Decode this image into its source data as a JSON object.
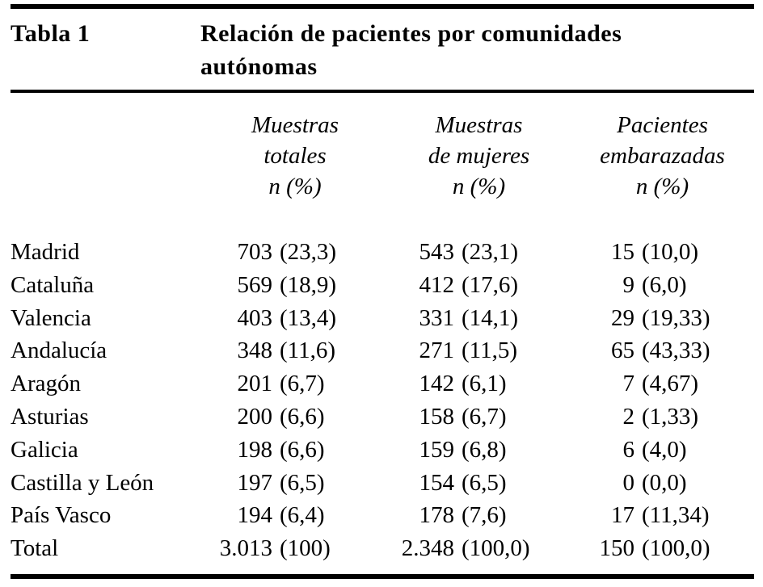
{
  "page": {
    "background": "#ffffff",
    "text_color": "#000000",
    "rule_color": "#000000"
  },
  "caption": {
    "label": "Tabla 1",
    "title": "Relación de pacientes por comunidades autónomas"
  },
  "table": {
    "header": {
      "col1": [
        "Muestras",
        "totales",
        "n (%)"
      ],
      "col2": [
        "Muestras",
        "de mujeres",
        "n (%)"
      ],
      "col3": [
        "Pacientes",
        "embarazadas",
        "n (%)"
      ]
    },
    "rows": [
      {
        "region": "Madrid",
        "total_n": "703",
        "total_pct": "(23,3)",
        "mujeres_n": "543",
        "mujeres_pct": "(23,1)",
        "embarazadas_n": "15",
        "embarazadas_pct": "(10,0)"
      },
      {
        "region": "Cataluña",
        "total_n": "569",
        "total_pct": "(18,9)",
        "mujeres_n": "412",
        "mujeres_pct": "(17,6)",
        "embarazadas_n": "9",
        "embarazadas_pct": "(6,0)"
      },
      {
        "region": "Valencia",
        "total_n": "403",
        "total_pct": "(13,4)",
        "mujeres_n": "331",
        "mujeres_pct": "(14,1)",
        "embarazadas_n": "29",
        "embarazadas_pct": "(19,33)"
      },
      {
        "region": "Andalucía",
        "total_n": "348",
        "total_pct": "(11,6)",
        "mujeres_n": "271",
        "mujeres_pct": "(11,5)",
        "embarazadas_n": "65",
        "embarazadas_pct": "(43,33)"
      },
      {
        "region": "Aragón",
        "total_n": "201",
        "total_pct": "(6,7)",
        "mujeres_n": "142",
        "mujeres_pct": "(6,1)",
        "embarazadas_n": "7",
        "embarazadas_pct": "(4,67)"
      },
      {
        "region": "Asturias",
        "total_n": "200",
        "total_pct": "(6,6)",
        "mujeres_n": "158",
        "mujeres_pct": "(6,7)",
        "embarazadas_n": "2",
        "embarazadas_pct": "(1,33)"
      },
      {
        "region": "Galicia",
        "total_n": "198",
        "total_pct": "(6,6)",
        "mujeres_n": "159",
        "mujeres_pct": "(6,8)",
        "embarazadas_n": "6",
        "embarazadas_pct": "(4,0)"
      },
      {
        "region": "Castilla y León",
        "total_n": "197",
        "total_pct": "(6,5)",
        "mujeres_n": "154",
        "mujeres_pct": "(6,5)",
        "embarazadas_n": "0",
        "embarazadas_pct": "(0,0)"
      },
      {
        "region": "País Vasco",
        "total_n": "194",
        "total_pct": "(6,4)",
        "mujeres_n": "178",
        "mujeres_pct": "(7,6)",
        "embarazadas_n": "17",
        "embarazadas_pct": "(11,34)"
      },
      {
        "region": "Total",
        "total_n": "3.013",
        "total_pct": "(100)",
        "mujeres_n": "2.348",
        "mujeres_pct": "(100,0)",
        "embarazadas_n": "150",
        "embarazadas_pct": "(100,0)"
      }
    ]
  }
}
